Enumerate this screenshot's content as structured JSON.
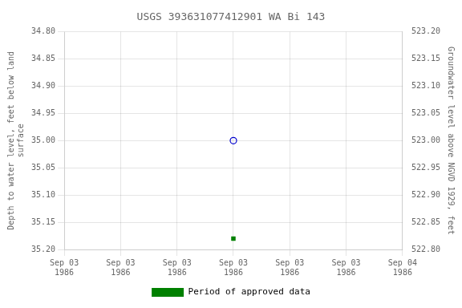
{
  "chart_data": {
    "type": "scatter",
    "title": "USGS 393631077412901 WA Bi 143",
    "categories": [
      "Sep 03\n1986",
      "Sep 03\n1986",
      "Sep 03\n1986",
      "Sep 03\n1986",
      "Sep 03\n1986",
      "Sep 03\n1986",
      "Sep 04\n1986"
    ],
    "y_label": "Depth to water level, feet below land\nsurface",
    "y2_label": "Groundwater level above NGVD 1929, feet",
    "series": [
      {
        "color": "#0000cd",
        "marker": "circle",
        "values": [
          null,
          null,
          null,
          35.0,
          null,
          null,
          null
        ]
      },
      {
        "name": "Period of approved data",
        "color": "#008000",
        "marker": "square",
        "values": [
          null,
          null,
          null,
          35.18,
          null,
          null,
          null
        ]
      }
    ],
    "ylim": [
      35.2,
      34.8
    ],
    "yticks": [
      {
        "value": 34.8,
        "label": "34.80"
      },
      {
        "value": 34.85,
        "label": "34.85"
      },
      {
        "value": 34.9,
        "label": "34.90"
      },
      {
        "value": 34.95,
        "label": "34.95"
      },
      {
        "value": 35,
        "label": "35.00"
      },
      {
        "value": 35.05,
        "label": "35.05"
      },
      {
        "value": 35.1,
        "label": "35.10"
      },
      {
        "value": 35.15,
        "label": "35.15"
      },
      {
        "value": 35.2,
        "label": "35.20"
      }
    ],
    "y2lim": [
      522.8,
      523.2
    ],
    "y2ticks": [
      {
        "value": 523.2,
        "label": "523.20"
      },
      {
        "value": 523.15,
        "label": "523.15"
      },
      {
        "value": 523.1,
        "label": "523.10"
      },
      {
        "value": 523.05,
        "label": "523.05"
      },
      {
        "value": 523,
        "label": "523.00"
      },
      {
        "value": 522.95,
        "label": "522.95"
      },
      {
        "value": 522.9,
        "label": "522.90"
      },
      {
        "value": 522.85,
        "label": "522.85"
      },
      {
        "value": 522.8,
        "label": "522.80"
      }
    ],
    "grid": true,
    "legend": "bottom"
  }
}
